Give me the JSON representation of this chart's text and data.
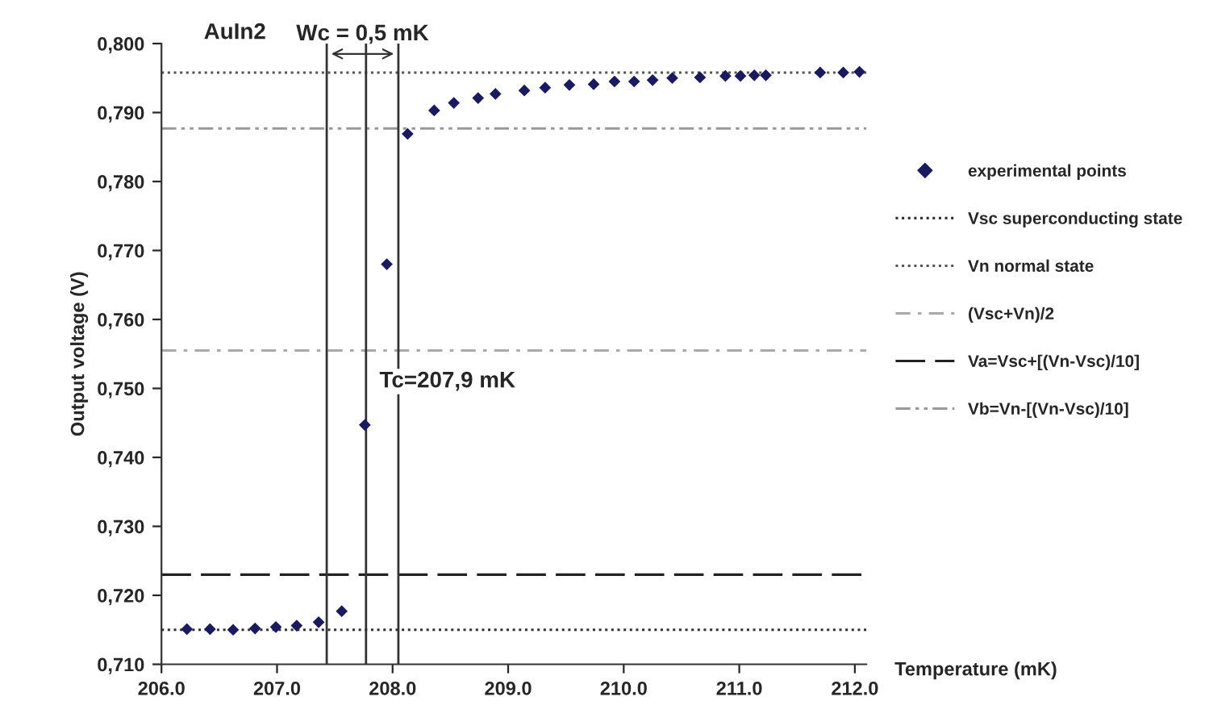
{
  "chart_data": {
    "type": "scatter",
    "xlabel": "Temperature (mK)",
    "ylabel": "Output voltage (V)",
    "x": [
      206.22,
      206.42,
      206.62,
      206.81,
      206.99,
      207.17,
      207.36,
      207.56,
      207.76,
      207.95,
      208.13,
      208.36,
      208.53,
      208.74,
      208.89,
      209.14,
      209.32,
      209.53,
      209.74,
      209.92,
      210.09,
      210.25,
      210.42,
      210.66,
      210.88,
      211.01,
      211.13,
      211.23,
      211.7,
      211.9,
      212.04
    ],
    "series": [
      {
        "name": "experimental points",
        "color": "#1a1a5e",
        "values": [
          0.7151,
          0.7151,
          0.715,
          0.7152,
          0.7154,
          0.7156,
          0.7161,
          0.7177,
          0.7447,
          0.768,
          0.7869,
          0.7903,
          0.7914,
          0.7921,
          0.7927,
          0.7932,
          0.7936,
          0.794,
          0.7941,
          0.7945,
          0.7945,
          0.7947,
          0.795,
          0.7951,
          0.7953,
          0.7953,
          0.7954,
          0.7954,
          0.7958,
          0.7958,
          0.7959
        ]
      }
    ],
    "marker": "diamond",
    "xlim": [
      206.0,
      212.1
    ],
    "ylim": [
      0.71,
      0.8
    ],
    "xticks": [
      {
        "value": 206,
        "label": "206.0"
      },
      {
        "value": 207,
        "label": "207.0"
      },
      {
        "value": 208,
        "label": "208.0"
      },
      {
        "value": 209,
        "label": "209.0"
      },
      {
        "value": 210,
        "label": "210.0"
      },
      {
        "value": 211,
        "label": "211.0"
      },
      {
        "value": 212,
        "label": "212.0"
      }
    ],
    "yticks": [
      {
        "value": 0.71,
        "label": "0,710"
      },
      {
        "value": 0.72,
        "label": "0,720"
      },
      {
        "value": 0.73,
        "label": "0,730"
      },
      {
        "value": 0.74,
        "label": "0,740"
      },
      {
        "value": 0.75,
        "label": "0,750"
      },
      {
        "value": 0.76,
        "label": "0,760"
      },
      {
        "value": 0.77,
        "label": "0,770"
      },
      {
        "value": 0.78,
        "label": "0,780"
      },
      {
        "value": 0.79,
        "label": "0,790"
      },
      {
        "value": 0.8,
        "label": "0,800"
      }
    ],
    "ref_lines": [
      {
        "axis": "y",
        "value": 0.715,
        "label": "Vsc superconducting state",
        "color": "#333333",
        "line_style": "dotted"
      },
      {
        "axis": "y",
        "value": 0.7958,
        "label": "Vn normal state",
        "color": "#555555",
        "line_style": "dotted"
      },
      {
        "axis": "y",
        "value": 0.7555,
        "label": "(Vsc+Vn)/2",
        "color": "#aaaaaa",
        "line_style": "dashdot"
      },
      {
        "axis": "y",
        "value": 0.723,
        "label": "Va=Vsc+[(Vn-Vsc)/10]",
        "color": "#222222",
        "line_style": "dashed"
      },
      {
        "axis": "y",
        "value": 0.7877,
        "label": "Vb=Vn-[(Vn-Vsc)/10]",
        "color": "#999999",
        "line_style": "dashdotdot"
      },
      {
        "axis": "x",
        "value": 207.43,
        "color": "#333333",
        "line_style": "solid"
      },
      {
        "axis": "x",
        "value": 208.05,
        "color": "#333333",
        "line_style": "solid"
      },
      {
        "axis": "x",
        "value": 207.77,
        "color": "#333333",
        "line_style": "solid"
      }
    ],
    "annotations": [
      "AuIn2",
      {
        "text": "Wc = 0,5 mK",
        "x": 207.74,
        "y": 0.7985
      },
      {
        "text": "Tc=207,9 mK",
        "x": 207.77,
        "y": 0.751
      }
    ],
    "grid": false,
    "legend": "right"
  }
}
